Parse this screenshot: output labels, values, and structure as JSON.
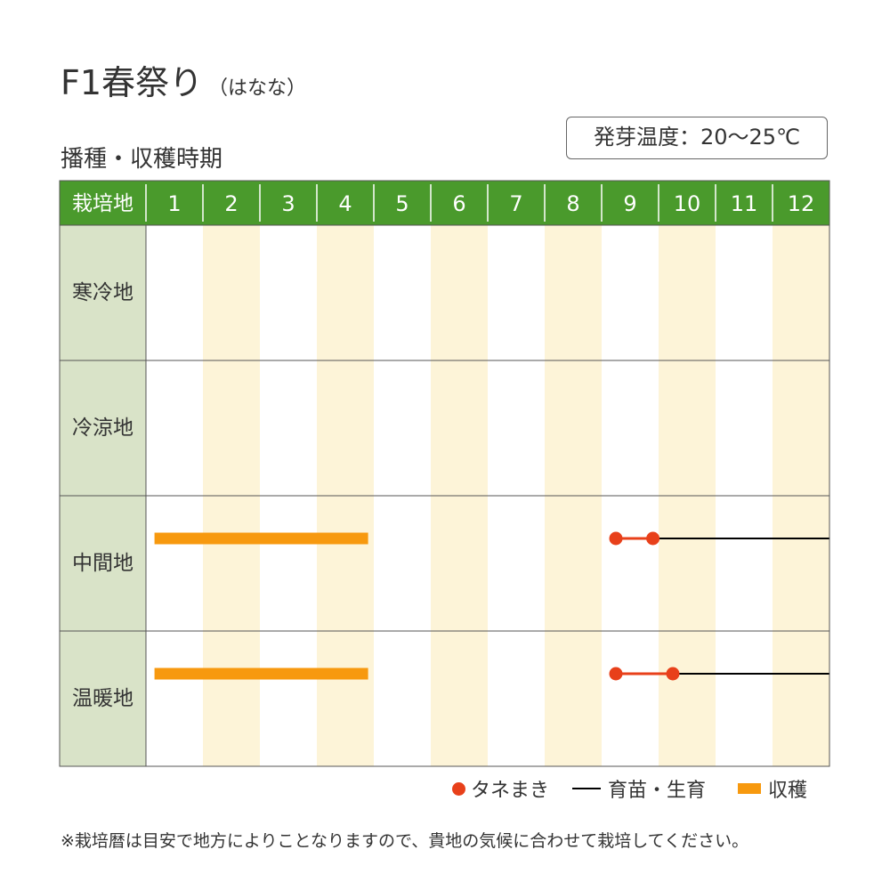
{
  "title": "F1春祭り",
  "subtitle": "（はなな）",
  "section_title": "播種・収穫時期",
  "germination_temp": "発芽温度：20～25℃",
  "colors": {
    "header_green": "#4a9a2c",
    "region_bg": "#d9e3c8",
    "stripe": "#fdf4d8",
    "sowing_dot": "#e8401a",
    "growth_line": "#000000",
    "harvest_bar": "#f7990f"
  },
  "chart_data": {
    "type": "gantt",
    "header_label": "栽培地",
    "months": [
      "1",
      "2",
      "3",
      "4",
      "5",
      "6",
      "7",
      "8",
      "9",
      "10",
      "11",
      "12"
    ],
    "regions": [
      {
        "name": "寒冷地",
        "sowing": null,
        "growth": null,
        "harvest": null
      },
      {
        "name": "冷涼地",
        "sowing": null,
        "growth": null,
        "harvest": null
      },
      {
        "name": "中間地",
        "sowing": [
          9.25,
          9.9
        ],
        "growth": [
          9.9,
          13.0
        ],
        "harvest": [
          1.15,
          4.9
        ]
      },
      {
        "name": "温暖地",
        "sowing": [
          9.25,
          10.25
        ],
        "growth": [
          10.25,
          13.0
        ],
        "harvest": [
          1.15,
          4.9
        ]
      }
    ],
    "legend": {
      "sowing": "タネまき",
      "growth": "育苗・生育",
      "harvest": "収穫"
    }
  },
  "note": "※栽培暦は目安で地方によりことなりますので、貴地の気候に合わせて栽培してください。"
}
